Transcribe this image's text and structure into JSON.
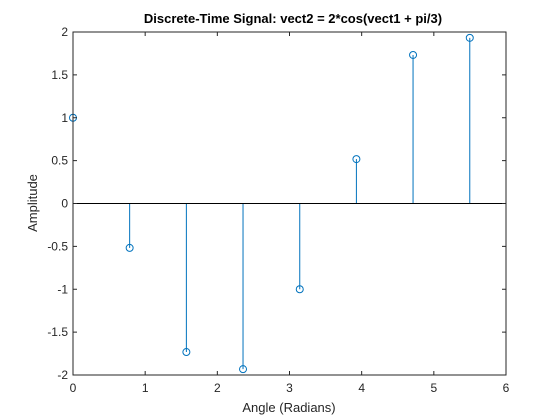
{
  "chart_data": {
    "type": "stem",
    "title": "Discrete-Time Signal: vect2 = 2*cos(vect1 + pi/3)",
    "xlabel": "Angle (Radians)",
    "ylabel": "Amplitude",
    "xlim": [
      0,
      6
    ],
    "ylim": [
      -2,
      2
    ],
    "xticks": [
      0,
      1,
      2,
      3,
      4,
      5,
      6
    ],
    "xtick_labels": [
      "0",
      "1",
      "2",
      "3",
      "4",
      "5",
      "6"
    ],
    "yticks": [
      -2,
      -1.5,
      -1,
      -0.5,
      0,
      0.5,
      1,
      1.5,
      2
    ],
    "ytick_labels": [
      "-2",
      "-1.5",
      "-1",
      "-0.5",
      "0",
      "0.5",
      "1",
      "1.5",
      "2"
    ],
    "grid": false,
    "baseline": 0,
    "color": "#0072bd",
    "points": [
      {
        "x": 0.0,
        "y": 1.0
      },
      {
        "x": 0.785,
        "y": -0.518
      },
      {
        "x": 1.571,
        "y": -1.732
      },
      {
        "x": 2.356,
        "y": -1.932
      },
      {
        "x": 3.142,
        "y": -1.0
      },
      {
        "x": 3.927,
        "y": 0.518
      },
      {
        "x": 4.712,
        "y": 1.732
      },
      {
        "x": 5.498,
        "y": 1.932
      }
    ]
  }
}
